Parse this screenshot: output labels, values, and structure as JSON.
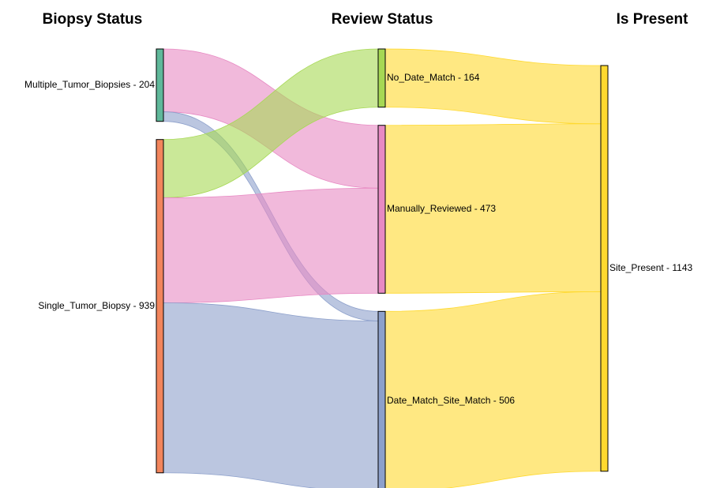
{
  "chart_data": {
    "type": "sankey",
    "columns": [
      {
        "title": "Biopsy Status",
        "nodes": [
          {
            "label": "Multiple_Tumor_Biopsies - 204",
            "value": 204,
            "color": "#5fb89a"
          },
          {
            "label": "Single_Tumor_Biopsy - 939",
            "value": 939,
            "color": "#f2855c"
          }
        ]
      },
      {
        "title": "Review Status",
        "nodes": [
          {
            "label": "No_Date_Match - 164",
            "value": 164,
            "color": "#a6d854"
          },
          {
            "label": "Manually_Reviewed - 473",
            "value": 473,
            "color": "#e78ac3"
          },
          {
            "label": "Date_Match_Site_Match - 506",
            "value": 506,
            "color": "#8da0cb"
          }
        ]
      },
      {
        "title": "Is Present",
        "nodes": [
          {
            "label": "Site_Present - 1143",
            "value": 1143,
            "color": "#ffd92f"
          }
        ]
      }
    ],
    "links": [
      {
        "from": [
          0,
          0
        ],
        "to": [
          1,
          1
        ],
        "value": 177
      },
      {
        "from": [
          0,
          0
        ],
        "to": [
          1,
          2
        ],
        "value": 27
      },
      {
        "from": [
          0,
          1
        ],
        "to": [
          1,
          0
        ],
        "value": 164
      },
      {
        "from": [
          0,
          1
        ],
        "to": [
          1,
          1
        ],
        "value": 296
      },
      {
        "from": [
          0,
          1
        ],
        "to": [
          1,
          2
        ],
        "value": 479
      },
      {
        "from": [
          1,
          0
        ],
        "to": [
          2,
          0
        ],
        "value": 164
      },
      {
        "from": [
          1,
          1
        ],
        "to": [
          2,
          0
        ],
        "value": 473
      },
      {
        "from": [
          1,
          2
        ],
        "to": [
          2,
          0
        ],
        "value": 506
      }
    ]
  }
}
